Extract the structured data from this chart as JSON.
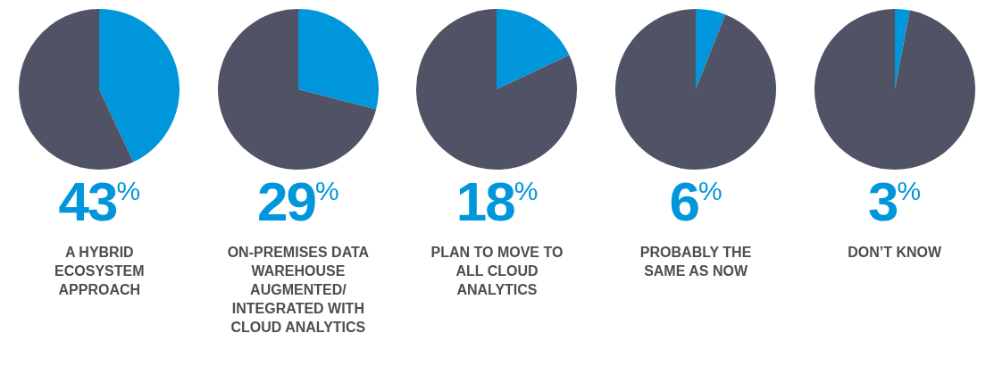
{
  "chart_data": [
    {
      "type": "pie",
      "title": "A HYBRID ECOSYSTEM APPROACH",
      "categories": [
        null,
        null
      ],
      "values": [
        43,
        57
      ],
      "colors": [
        "#0096db",
        "#505266"
      ],
      "annotations": [
        "43%"
      ],
      "legend": false
    },
    {
      "type": "pie",
      "title": "ON-PREMISES DATA WAREHOUSE AUGMENTED/ INTEGRATED WITH CLOUD ANALYTICS",
      "categories": [
        null,
        null
      ],
      "values": [
        29,
        71
      ],
      "colors": [
        "#0096db",
        "#505266"
      ],
      "annotations": [
        "29%"
      ],
      "legend": false
    },
    {
      "type": "pie",
      "title": "PLAN TO MOVE TO ALL CLOUD ANALYTICS",
      "categories": [
        null,
        null
      ],
      "values": [
        18,
        82
      ],
      "colors": [
        "#0096db",
        "#505266"
      ],
      "annotations": [
        "18%"
      ],
      "legend": false
    },
    {
      "type": "pie",
      "title": "PROBABLY THE SAME AS NOW",
      "categories": [
        null,
        null
      ],
      "values": [
        6,
        94
      ],
      "colors": [
        "#0096db",
        "#505266"
      ],
      "annotations": [
        "6%"
      ],
      "legend": false
    },
    {
      "type": "pie",
      "title": "DON’T KNOW",
      "categories": [
        null,
        null
      ],
      "values": [
        3,
        97
      ],
      "colors": [
        "#0096db",
        "#505266"
      ],
      "annotations": [
        "3%"
      ],
      "legend": false
    }
  ]
}
